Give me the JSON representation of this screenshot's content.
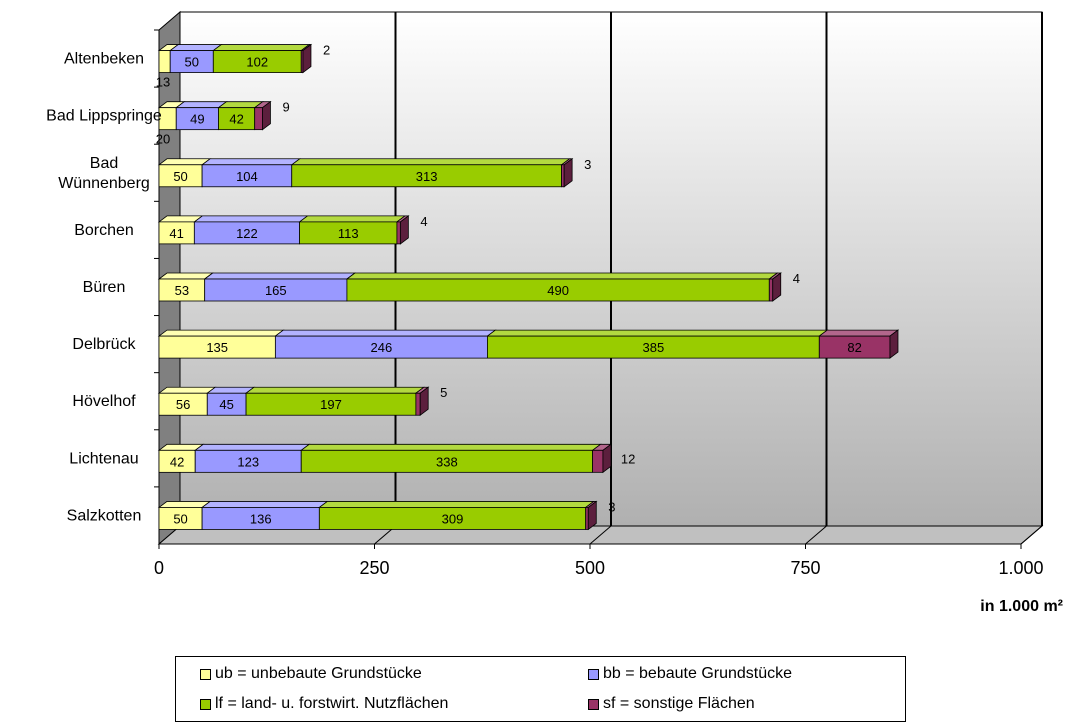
{
  "chart_data": {
    "type": "bar",
    "orientation": "horizontal",
    "stacked": true,
    "three_d": true,
    "categories": [
      "Altenbeken",
      "Bad Lippspringe",
      "Bad Wünnenberg",
      "Borchen",
      "Büren",
      "Delbrück",
      "Hövelhof",
      "Lichtenau",
      "Salzkotten"
    ],
    "category_display": [
      [
        "Altenbeken"
      ],
      [
        "Bad Lippspringe"
      ],
      [
        "Bad",
        "Wünnenberg"
      ],
      [
        "Borchen"
      ],
      [
        "Büren"
      ],
      [
        "Delbrück"
      ],
      [
        "Hövelhof"
      ],
      [
        "Lichtenau"
      ],
      [
        "Salzkotten"
      ]
    ],
    "series": [
      {
        "name": "ub = unbebaute Grundstücke",
        "color": "#ffff99",
        "values": [
          13,
          20,
          50,
          41,
          53,
          135,
          56,
          42,
          50
        ]
      },
      {
        "name": "bb = bebaute Grundstücke",
        "color": "#9999ff",
        "values": [
          50,
          49,
          104,
          122,
          165,
          246,
          45,
          123,
          136
        ]
      },
      {
        "name": "lf = land- u. forstwirt. Nutzflächen",
        "color": "#99cc00",
        "values": [
          102,
          42,
          313,
          113,
          490,
          385,
          197,
          338,
          309
        ]
      },
      {
        "name": "sf = sonstige Flächen",
        "color": "#993366",
        "values": [
          2,
          9,
          3,
          4,
          4,
          82,
          5,
          12,
          3
        ]
      }
    ],
    "xlim": [
      0,
      1000
    ],
    "xticks": [
      0,
      250,
      500,
      750,
      1000
    ],
    "xtick_labels": [
      "0",
      "250",
      "500",
      "750",
      "1.000"
    ],
    "xlabel": "in 1.000 m²",
    "gridlines": true,
    "legend_position": "bottom"
  }
}
